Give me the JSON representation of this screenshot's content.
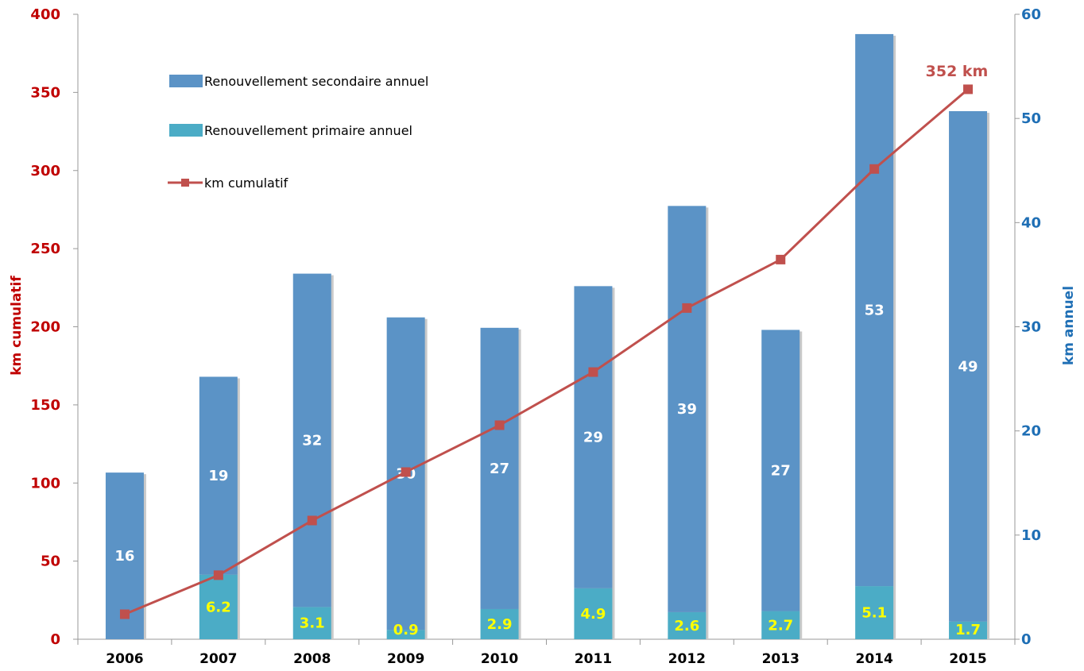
{
  "chart_data": {
    "type": "bar",
    "categories": [
      "2006",
      "2007",
      "2008",
      "2009",
      "2010",
      "2011",
      "2012",
      "2013",
      "2014",
      "2015"
    ],
    "series": [
      {
        "name": "Renouvellement primaire annuel",
        "values": [
          0,
          6.2,
          3.1,
          0.9,
          2.9,
          4.9,
          2.6,
          2.7,
          5.1,
          1.7
        ],
        "labels": [
          "",
          "6.2",
          "3.1",
          "0.9",
          "2.9",
          "4.9",
          "2.6",
          "2.7",
          "5.1",
          "1.7"
        ],
        "color": "#4bacc6",
        "axis": "right"
      },
      {
        "name": "Renouvellement secondaire annuel",
        "values": [
          16,
          19,
          32,
          30,
          27,
          29,
          39,
          27,
          53,
          49
        ],
        "labels": [
          "16",
          "19",
          "32",
          "30",
          "27",
          "29",
          "39",
          "27",
          "53",
          "49"
        ],
        "color": "#5b93c6",
        "axis": "right"
      },
      {
        "name": "km cumulatif",
        "type": "line",
        "values": [
          16,
          41,
          76,
          107,
          137,
          171,
          212,
          243,
          301,
          352
        ],
        "color": "#c0504d",
        "axis": "left"
      }
    ],
    "annotation": "352 km",
    "ylabel": "km cumulatif",
    "y2label": "km annuel",
    "ylim": [
      0,
      400
    ],
    "y2lim": [
      0,
      60
    ],
    "yticks": [
      "0",
      "50",
      "100",
      "150",
      "200",
      "250",
      "300",
      "350",
      "400"
    ],
    "y2ticks": [
      "0",
      "10",
      "20",
      "30",
      "40",
      "50",
      "60"
    ],
    "legend_position": "top-left",
    "grid": false
  }
}
